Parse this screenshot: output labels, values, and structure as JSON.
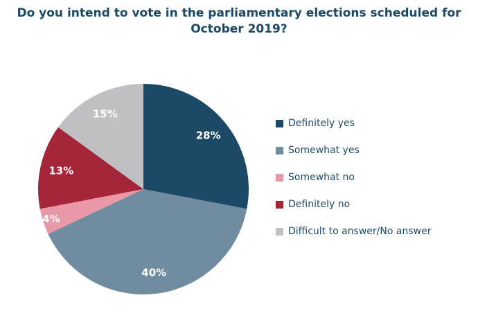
{
  "chart_data": {
    "type": "pie",
    "title": "Do you intend to vote in the parliamentary elections scheduled for October 2019?",
    "labels": [
      "Definitely yes",
      "Somewhat yes",
      "Somewhat no",
      "Definitely no",
      "Difficult to answer/No answer"
    ],
    "values": [
      28,
      40,
      4,
      13,
      15
    ],
    "data_labels": [
      "28%",
      "40%",
      "4%",
      "13%",
      "15%"
    ],
    "colors": [
      "#1C4966",
      "#6F8CA0",
      "#E898A6",
      "#A52639",
      "#C0C0C4"
    ],
    "slice_label_color": "#ffffff",
    "title_color": "#1C4966",
    "legend_text_color": "#1C4966",
    "start_angle_deg": -90,
    "direction": "clockwise",
    "legend_position": "right",
    "background": "#ffffff"
  }
}
